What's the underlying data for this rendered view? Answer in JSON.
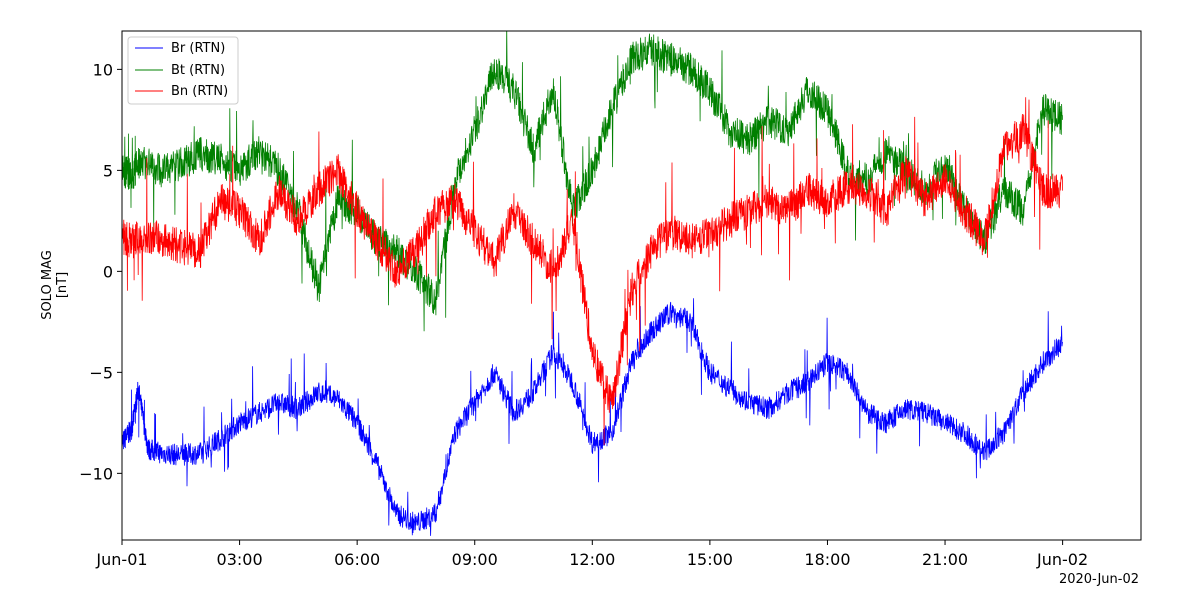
{
  "chart_data": {
    "type": "line",
    "ylabel_lines": [
      "SOLO MAG",
      "[nT]"
    ],
    "x_offset_label": "2020-Jun-02",
    "xlim": [
      "2020-06-01T00:00",
      "2020-06-02T02:00"
    ],
    "ylim": [
      -13.3,
      11.9
    ],
    "x_tick_positions": [
      "2020-06-01T00:00",
      "2020-06-01T03:00",
      "2020-06-01T06:00",
      "2020-06-01T09:00",
      "2020-06-01T12:00",
      "2020-06-01T15:00",
      "2020-06-01T18:00",
      "2020-06-01T21:00",
      "2020-06-02T00:00"
    ],
    "x_tick_labels": [
      "Jun-01",
      "03:00",
      "06:00",
      "09:00",
      "12:00",
      "15:00",
      "18:00",
      "21:00",
      "Jun-02"
    ],
    "y_ticks": [
      -10,
      -5,
      0,
      5,
      10
    ],
    "y_tick_labels": [
      "−10",
      "−5",
      "0",
      "5",
      "10"
    ],
    "grid": false,
    "legend_position": "top-left",
    "series": [
      {
        "name": "Br (RTN)",
        "color": "#0000ff",
        "x": [
          "2020-06-01T00:00",
          "2020-06-01T00:15",
          "2020-06-01T00:25",
          "2020-06-01T00:40",
          "2020-06-01T01:00",
          "2020-06-01T01:30",
          "2020-06-01T02:00",
          "2020-06-01T02:30",
          "2020-06-01T03:00",
          "2020-06-01T03:30",
          "2020-06-01T04:00",
          "2020-06-01T04:30",
          "2020-06-01T05:00",
          "2020-06-01T05:30",
          "2020-06-01T06:00",
          "2020-06-01T06:30",
          "2020-06-01T07:00",
          "2020-06-01T07:30",
          "2020-06-01T08:00",
          "2020-06-01T08:30",
          "2020-06-01T09:00",
          "2020-06-01T09:30",
          "2020-06-01T10:00",
          "2020-06-01T10:30",
          "2020-06-01T11:00",
          "2020-06-01T11:30",
          "2020-06-01T12:00",
          "2020-06-01T12:30",
          "2020-06-01T13:00",
          "2020-06-01T13:30",
          "2020-06-01T14:00",
          "2020-06-01T14:30",
          "2020-06-01T15:00",
          "2020-06-01T15:30",
          "2020-06-01T16:00",
          "2020-06-01T16:30",
          "2020-06-01T17:00",
          "2020-06-01T17:30",
          "2020-06-01T18:00",
          "2020-06-01T18:30",
          "2020-06-01T19:00",
          "2020-06-01T19:30",
          "2020-06-01T20:00",
          "2020-06-01T20:30",
          "2020-06-01T21:00",
          "2020-06-01T21:30",
          "2020-06-01T22:00",
          "2020-06-01T22:30",
          "2020-06-01T23:00",
          "2020-06-01T23:30",
          "2020-06-02T00:00"
        ],
        "y": [
          -8.5,
          -7.8,
          -5.8,
          -8.8,
          -9.0,
          -9.1,
          -9.0,
          -8.3,
          -7.5,
          -7.0,
          -6.5,
          -6.8,
          -6.0,
          -6.3,
          -7.5,
          -9.5,
          -12.0,
          -12.5,
          -12.0,
          -8.0,
          -6.5,
          -5.0,
          -7.0,
          -6.0,
          -4.0,
          -5.5,
          -8.5,
          -8.0,
          -4.5,
          -3.0,
          -2.0,
          -2.5,
          -5.0,
          -5.8,
          -6.5,
          -6.8,
          -6.0,
          -5.5,
          -4.5,
          -5.0,
          -7.0,
          -7.5,
          -6.8,
          -7.0,
          -7.5,
          -8.0,
          -9.0,
          -8.0,
          -6.0,
          -4.5,
          -3.5
        ]
      },
      {
        "name": "Bt (RTN)",
        "color": "#008000",
        "x": [
          "2020-06-01T00:00",
          "2020-06-01T00:15",
          "2020-06-01T00:30",
          "2020-06-01T01:00",
          "2020-06-01T01:30",
          "2020-06-01T02:00",
          "2020-06-01T02:30",
          "2020-06-01T03:00",
          "2020-06-01T03:30",
          "2020-06-01T04:00",
          "2020-06-01T04:30",
          "2020-06-01T05:00",
          "2020-06-01T05:30",
          "2020-06-01T06:00",
          "2020-06-01T06:30",
          "2020-06-01T07:00",
          "2020-06-01T07:30",
          "2020-06-01T08:00",
          "2020-06-01T08:30",
          "2020-06-01T09:00",
          "2020-06-01T09:30",
          "2020-06-01T10:00",
          "2020-06-01T10:30",
          "2020-06-01T11:00",
          "2020-06-01T11:30",
          "2020-06-01T12:00",
          "2020-06-01T12:30",
          "2020-06-01T13:00",
          "2020-06-01T13:30",
          "2020-06-01T14:00",
          "2020-06-01T14:30",
          "2020-06-01T15:00",
          "2020-06-01T15:30",
          "2020-06-01T16:00",
          "2020-06-01T16:30",
          "2020-06-01T17:00",
          "2020-06-01T17:30",
          "2020-06-01T18:00",
          "2020-06-01T18:30",
          "2020-06-01T19:00",
          "2020-06-01T19:30",
          "2020-06-01T20:00",
          "2020-06-01T20:30",
          "2020-06-01T21:00",
          "2020-06-01T21:30",
          "2020-06-01T22:00",
          "2020-06-01T22:30",
          "2020-06-01T23:00",
          "2020-06-01T23:30",
          "2020-06-02T00:00"
        ],
        "y": [
          5.0,
          4.8,
          5.5,
          5.0,
          5.3,
          5.8,
          5.5,
          5.0,
          6.0,
          5.0,
          3.0,
          -1.0,
          3.5,
          3.0,
          1.5,
          1.0,
          0.0,
          -1.5,
          4.5,
          7.0,
          10.0,
          9.0,
          6.0,
          9.0,
          3.0,
          5.0,
          8.0,
          10.5,
          11.0,
          10.5,
          10.0,
          9.0,
          7.0,
          6.5,
          7.5,
          7.0,
          9.0,
          8.0,
          5.0,
          4.5,
          6.0,
          5.0,
          4.0,
          5.5,
          3.0,
          1.5,
          4.0,
          3.0,
          8.0,
          7.5
        ]
      },
      {
        "name": "Bn (RTN)",
        "color": "#ff0000",
        "x": [
          "2020-06-01T00:00",
          "2020-06-01T00:15",
          "2020-06-01T00:30",
          "2020-06-01T01:00",
          "2020-06-01T01:30",
          "2020-06-01T02:00",
          "2020-06-01T02:30",
          "2020-06-01T03:00",
          "2020-06-01T03:30",
          "2020-06-01T04:00",
          "2020-06-01T04:30",
          "2020-06-01T05:00",
          "2020-06-01T05:30",
          "2020-06-01T06:00",
          "2020-06-01T06:30",
          "2020-06-01T07:00",
          "2020-06-01T07:30",
          "2020-06-01T08:00",
          "2020-06-01T08:30",
          "2020-06-01T09:00",
          "2020-06-01T09:30",
          "2020-06-01T10:00",
          "2020-06-01T10:30",
          "2020-06-01T11:00",
          "2020-06-01T11:30",
          "2020-06-01T12:00",
          "2020-06-01T12:30",
          "2020-06-01T13:00",
          "2020-06-01T13:30",
          "2020-06-01T14:00",
          "2020-06-01T14:30",
          "2020-06-01T15:00",
          "2020-06-01T15:30",
          "2020-06-01T16:00",
          "2020-06-01T16:30",
          "2020-06-01T17:00",
          "2020-06-01T17:30",
          "2020-06-01T18:00",
          "2020-06-01T18:30",
          "2020-06-01T19:00",
          "2020-06-01T19:30",
          "2020-06-01T20:00",
          "2020-06-01T20:30",
          "2020-06-01T21:00",
          "2020-06-01T21:30",
          "2020-06-01T22:00",
          "2020-06-01T22:30",
          "2020-06-01T23:00",
          "2020-06-01T23:30",
          "2020-06-02T00:00"
        ],
        "y": [
          1.7,
          1.5,
          1.8,
          1.6,
          1.2,
          1.0,
          3.5,
          3.0,
          1.5,
          4.0,
          2.5,
          4.0,
          5.0,
          3.0,
          1.5,
          0.0,
          1.0,
          3.0,
          3.5,
          2.0,
          0.5,
          3.0,
          1.5,
          0.0,
          2.5,
          -4.0,
          -6.5,
          -1.0,
          1.0,
          2.0,
          1.5,
          1.8,
          2.5,
          3.0,
          3.5,
          3.0,
          4.0,
          3.5,
          4.2,
          4.0,
          3.0,
          5.0,
          3.5,
          4.5,
          3.0,
          1.5,
          6.0,
          7.0,
          4.0,
          4.0
        ]
      }
    ]
  }
}
